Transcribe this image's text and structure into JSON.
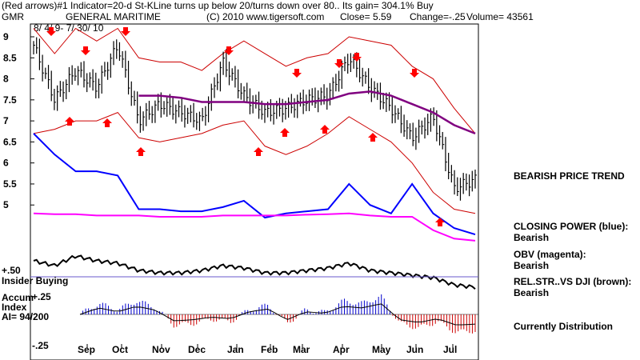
{
  "header": {
    "line1": "(Red arrows)#1 Indicator=20-d St-KLine turns up below 20/turns down over 80.. Its gain= 304.1% Buy",
    "ticker": "GMR",
    "company": "GENERAL MARITIME",
    "copyright": "(C) 2010 www.tigersoft.com",
    "close_label": "Close=  5.59",
    "change_label": "Change=-.25",
    "volume_label": "Volume= 43561",
    "date_range": "8/ 4/ 9-  7/ 30/ 10"
  },
  "side_labels": {
    "trend": "BEARISH PRICE TREND",
    "closing_power_title": "CLOSING POWER (blue):",
    "closing_power_value": "Bearish",
    "obv_title": "OBV (magenta):",
    "obv_value": "Bearish",
    "relstr_title": "REL.STR..VS DJI (brown):",
    "relstr_value": "Bearish",
    "accum_status": "Currently Distribution"
  },
  "indicator_labels": {
    "insider": "Insider Buying",
    "plus50": "+.50",
    "accum_title_1": "Accum",
    "accum_title_2": "Index",
    "accum_ai": "AI= 94/200",
    "plus25": "+.25",
    "minus25": "-.25"
  },
  "colors": {
    "price_bars": "#000000",
    "bands": "#cc0000",
    "ma": "#800080",
    "closing_power": "#0000ff",
    "obv": "#ff00ff",
    "rel_strength": "#000000",
    "arrows": "#ff0000",
    "accum_pos": "#0000cc",
    "accum_neg": "#cc0000",
    "insider_line": "#6a5acd"
  },
  "chart_data": {
    "type": "line",
    "ticker": "GMR",
    "x_tick_labels": [
      "Sep",
      "Oct",
      "Nov",
      "Dec",
      "Jan",
      "Feb",
      "Mar",
      "Apr",
      "May",
      "Jun",
      "Jul"
    ],
    "y_tick_labels": [
      "9",
      "8.5",
      "8",
      "7.5",
      "7",
      "6.5",
      "6",
      "5.5",
      "5"
    ],
    "ylim": [
      4.7,
      9.0
    ],
    "x": [
      "Aug",
      "Sep",
      "Sep",
      "Oct",
      "Oct",
      "Nov",
      "Nov",
      "Dec",
      "Dec",
      "Jan",
      "Jan",
      "Feb",
      "Feb",
      "Mar",
      "Mar",
      "Apr",
      "Apr",
      "May",
      "May",
      "Jun",
      "Jun",
      "Jul"
    ],
    "price_close": [
      8.8,
      7.5,
      8.2,
      7.8,
      8.8,
      7.0,
      7.4,
      7.2,
      7.0,
      8.4,
      7.6,
      7.2,
      7.3,
      7.5,
      7.6,
      8.5,
      7.8,
      7.3,
      6.6,
      7.1,
      5.4,
      5.6
    ],
    "upper_band": [
      9.2,
      8.6,
      9.2,
      8.9,
      9.2,
      8.5,
      8.4,
      8.4,
      8.2,
      8.6,
      8.9,
      8.6,
      8.3,
      8.5,
      8.6,
      9.0,
      8.9,
      8.8,
      8.3,
      8.0,
      7.3,
      6.7
    ],
    "lower_band": [
      6.7,
      6.8,
      7.0,
      7.0,
      7.2,
      6.6,
      6.5,
      6.6,
      6.7,
      6.9,
      7.0,
      6.4,
      6.2,
      6.4,
      6.7,
      7.1,
      6.8,
      6.5,
      6.0,
      5.3,
      4.9,
      4.8
    ],
    "moving_average": [
      null,
      null,
      null,
      null,
      null,
      7.6,
      7.6,
      7.55,
      7.45,
      7.45,
      7.45,
      7.4,
      7.4,
      7.45,
      7.5,
      7.65,
      7.7,
      7.6,
      7.4,
      7.2,
      6.9,
      6.7
    ],
    "closing_power": [
      6.7,
      6.2,
      5.8,
      5.8,
      5.7,
      4.9,
      4.9,
      4.85,
      4.85,
      4.95,
      5.1,
      4.7,
      4.8,
      4.85,
      4.9,
      5.5,
      5.0,
      4.8,
      5.5,
      4.8,
      4.45,
      4.3
    ],
    "obv": [
      4.8,
      4.78,
      4.78,
      4.75,
      4.75,
      4.75,
      4.72,
      4.72,
      4.72,
      4.75,
      4.75,
      4.75,
      4.75,
      4.77,
      4.78,
      4.8,
      4.75,
      4.72,
      4.72,
      4.4,
      4.2,
      4.15
    ],
    "red_arrow_sells": [
      "Sep",
      "Sep",
      "Oct",
      "Jan",
      "Mar",
      "Apr",
      "Apr",
      "Jun"
    ],
    "red_arrow_buys": [
      "Sep",
      "Sep",
      "Oct",
      "Feb",
      "Mar",
      "Apr",
      "May",
      "Jul"
    ],
    "accum_index": [
      0.0,
      0.12,
      0.05,
      0.15,
      0.08,
      -0.12,
      -0.1,
      -0.05,
      -0.08,
      0.05,
      0.1,
      -0.1,
      0.05,
      0.02,
      0.15,
      0.12,
      0.2,
      -0.1,
      -0.15,
      -0.08,
      -0.2,
      -0.18
    ],
    "accum_ylim": [
      -0.3,
      0.3
    ]
  }
}
